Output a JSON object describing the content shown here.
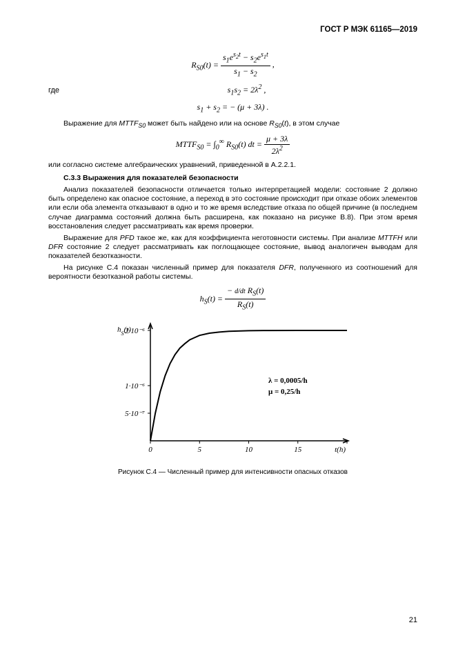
{
  "header": {
    "docnum": "ГОСТ Р МЭК 61165—2019"
  },
  "eq_r": {
    "lhs": "R<sub>S0</sub>(t) =",
    "num": "s<sub>1</sub>e<sup>s<sub>2</sub>t</sup> − s<sub>2</sub>e<sup>s<sub>1</sub>t</sup>",
    "den": "s<sub>1</sub> − s<sub>2</sub>",
    "tail": " ,"
  },
  "gde_label": "где",
  "eq_s1s2": "s<sub>1</sub>s<sub>2</sub> = 2λ<sup>2</sup> ,",
  "eq_s1p s2": "s<sub>1</sub> + s<sub>2</sub> = − (μ + 3λ) .",
  "p_mttf": "Выражение для <i>MTTF<sub>S0</sub></i> может быть найдено или на основе <i>R<sub>S0</sub></i>(<i>t</i>), в этом случае",
  "eq_mttf": {
    "lhs": "MTTF<sub>S0</sub> = ∫<sub>0</sub><sup>∞</sup> R<sub>S0</sub>(t) dt =",
    "num": "μ + 3λ",
    "den": "2λ<sup>2</sup>"
  },
  "p_after_mttf": "или согласно системе алгебраических уравнений, приведенной в А.2.2.1.",
  "heading": "С.3.3 Выражения для показателей безопасности",
  "p_body1": "Анализ показателей безопасности отличается только интерпретацией модели: состояние 2 должно быть определено как опасное состояние, а переход в это состояние происходит при отказе обоих элементов или если оба элемента отказывают в одно и то же время вследствие отказа по общей причине (в последнем случае диаграмма состояний должна быть расширена, как показано на рисунке В.8). При этом время восстановления следует рассматривать как время проверки.",
  "p_body2": "Выражение для <i>PFD</i> такое же, как для коэффициента неготовности системы. При анализе <i>MTTFH</i> или <i>DFR</i> состояние 2 следует рассматривать как поглощающее состояние, вывод аналогичен выводам для показателей безотказности.",
  "p_body3": "На рисунке С.4 показан численный пример для показателя <i>DFR</i>, полученного из соотношений для вероятности безотказной работы системы.",
  "eq_hs": {
    "lhs": "h<sub>S</sub>(t) =",
    "num": "− <span style=\"font-size:10px\">d/dt</span> R<sub>S</sub>(t)",
    "den": "R<sub>S</sub>(t)"
  },
  "fig": {
    "caption": "Рисунок С.4 — Численный пример для интенсивности опасных отказов",
    "y_label": "h<sub>S</sub>(t)",
    "y_ticks": [
      "2·10⁻⁶",
      "1·10⁻⁶",
      "5·10⁻⁷"
    ],
    "x_ticks": [
      "0",
      "5",
      "10",
      "15",
      "t(h)"
    ],
    "x_tick_pos": [
      0,
      5,
      10,
      15,
      20
    ],
    "param_lambda": "λ  = 0,0005/h",
    "param_mu": "μ = 0,25/h",
    "x_range": [
      0,
      20
    ],
    "y_range": [
      0,
      2.1e-06
    ],
    "curve": [
      [
        0,
        0
      ],
      [
        0.5,
        5e-07
      ],
      [
        1,
        8.9e-07
      ],
      [
        1.5,
        1.18e-06
      ],
      [
        2,
        1.4e-06
      ],
      [
        2.5,
        1.56e-06
      ],
      [
        3,
        1.68e-06
      ],
      [
        3.5,
        1.76e-06
      ],
      [
        4,
        1.83e-06
      ],
      [
        4.5,
        1.87e-06
      ],
      [
        5,
        1.91e-06
      ],
      [
        6,
        1.95e-06
      ],
      [
        7,
        1.97e-06
      ],
      [
        8,
        1.985e-06
      ],
      [
        10,
        1.995e-06
      ],
      [
        12,
        1.999e-06
      ],
      [
        15,
        2e-06
      ],
      [
        18,
        2e-06
      ],
      [
        20,
        2e-06
      ]
    ],
    "colors": {
      "axis": "#000000",
      "curve": "#000000",
      "background": "#ffffff"
    },
    "line_width": 2,
    "axis_width": 1.5,
    "tick_len": 4,
    "font_size_axis": 11
  },
  "page_number": "21"
}
